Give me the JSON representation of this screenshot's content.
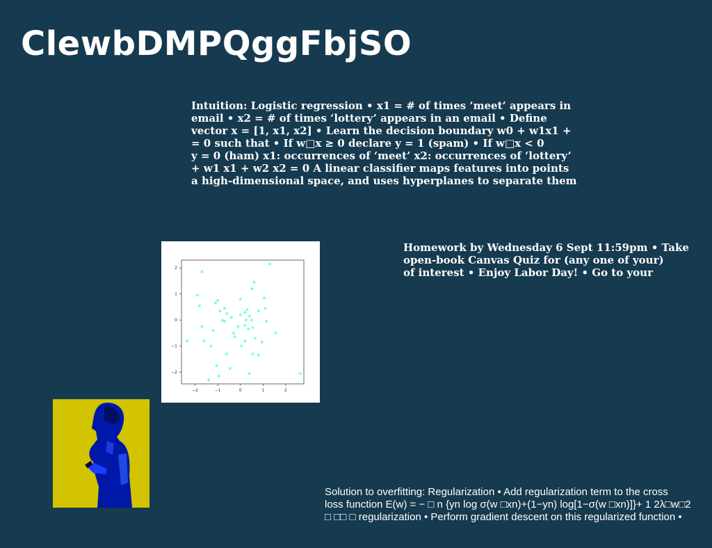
{
  "title": "ClewbDMPQggFbjSO",
  "block1_lines": [
    "Intuition: Logistic regression • x1 = # of times ’meet’ appears in",
    "email • x2 = # of times ‘lottery’ appears in an email • Define",
    "vector x = [1, x1, x2] • Learn the decision boundary w0 + w1x1 +",
    "= 0 such that • If w□x ≥ 0 declare y = 1 (spam) • If w□x < 0",
    "y = 0 (ham) x1: occurrences of ‘meet’ x2: occurrences of ‘lottery’",
    "+ w1 x1 + w2 x2 = 0 A linear classifier maps features into points",
    "a high-dimensional space, and uses hyperplanes to separate them"
  ],
  "block2_lines": [
    "Homework by Wednesday 6 Sept 11:59pm • Take",
    "open-book Canvas Quiz for (any one of your)",
    "of interest • Enjoy Labor Day! • Go to your"
  ],
  "block3_lines": [
    "Solution to overfitting: Regularization • Add regularization term to the cross",
    "loss function E(w) = − □ n {yn log σ(w □xn)+(1−yn) log[1−σ(w □xn)]}+ 1 2λ□w□2",
    "□ □□ □ regularization • Perform gradient descent on this regularized function •"
  ],
  "chart_data": {
    "type": "scatter",
    "xlim": [
      -2.6,
      2.8
    ],
    "ylim": [
      -2.45,
      2.3
    ],
    "xticks": [
      "−2",
      "−1",
      "0",
      "1",
      "2"
    ],
    "yticks": [
      "2",
      "1",
      "0",
      "−1",
      "−2"
    ],
    "color": "#7fffe0",
    "points": [
      [
        -1.7,
        1.85
      ],
      [
        1.3,
        2.15
      ],
      [
        -1.9,
        0.95
      ],
      [
        -1.8,
        0.55
      ],
      [
        -1.0,
        0.75
      ],
      [
        -1.1,
        0.65
      ],
      [
        -0.7,
        0.45
      ],
      [
        -0.6,
        0.25
      ],
      [
        -0.4,
        0.1
      ],
      [
        -0.8,
        0.0
      ],
      [
        -0.7,
        -0.05
      ],
      [
        -0.9,
        0.35
      ],
      [
        0.0,
        0.8
      ],
      [
        0.6,
        1.45
      ],
      [
        0.5,
        1.2
      ],
      [
        0.2,
        0.3
      ],
      [
        0.3,
        0.4
      ],
      [
        0.4,
        0.15
      ],
      [
        0.2,
        -0.2
      ],
      [
        0.35,
        -0.35
      ],
      [
        0.5,
        0.0
      ],
      [
        0.65,
        -0.7
      ],
      [
        0.55,
        -0.3
      ],
      [
        0.8,
        0.35
      ],
      [
        1.05,
        0.85
      ],
      [
        1.15,
        -0.05
      ],
      [
        1.1,
        0.45
      ],
      [
        1.55,
        -0.5
      ],
      [
        0.95,
        -0.85
      ],
      [
        -0.1,
        -0.25
      ],
      [
        -0.3,
        -0.5
      ],
      [
        -0.25,
        -0.65
      ],
      [
        0.05,
        -1.0
      ],
      [
        0.2,
        -0.8
      ],
      [
        -0.6,
        -1.3
      ],
      [
        -1.2,
        -0.4
      ],
      [
        -1.3,
        -1.0
      ],
      [
        -1.6,
        -0.8
      ],
      [
        -1.7,
        -0.25
      ],
      [
        -1.05,
        -1.75
      ],
      [
        -0.45,
        -1.85
      ],
      [
        -0.95,
        -2.15
      ],
      [
        -1.4,
        -2.3
      ],
      [
        0.4,
        -2.05
      ],
      [
        0.55,
        -1.3
      ],
      [
        0.8,
        -1.35
      ],
      [
        2.65,
        -2.05
      ],
      [
        -2.35,
        -0.8
      ],
      [
        0.0,
        0.2
      ],
      [
        0.25,
        0.0
      ]
    ]
  }
}
